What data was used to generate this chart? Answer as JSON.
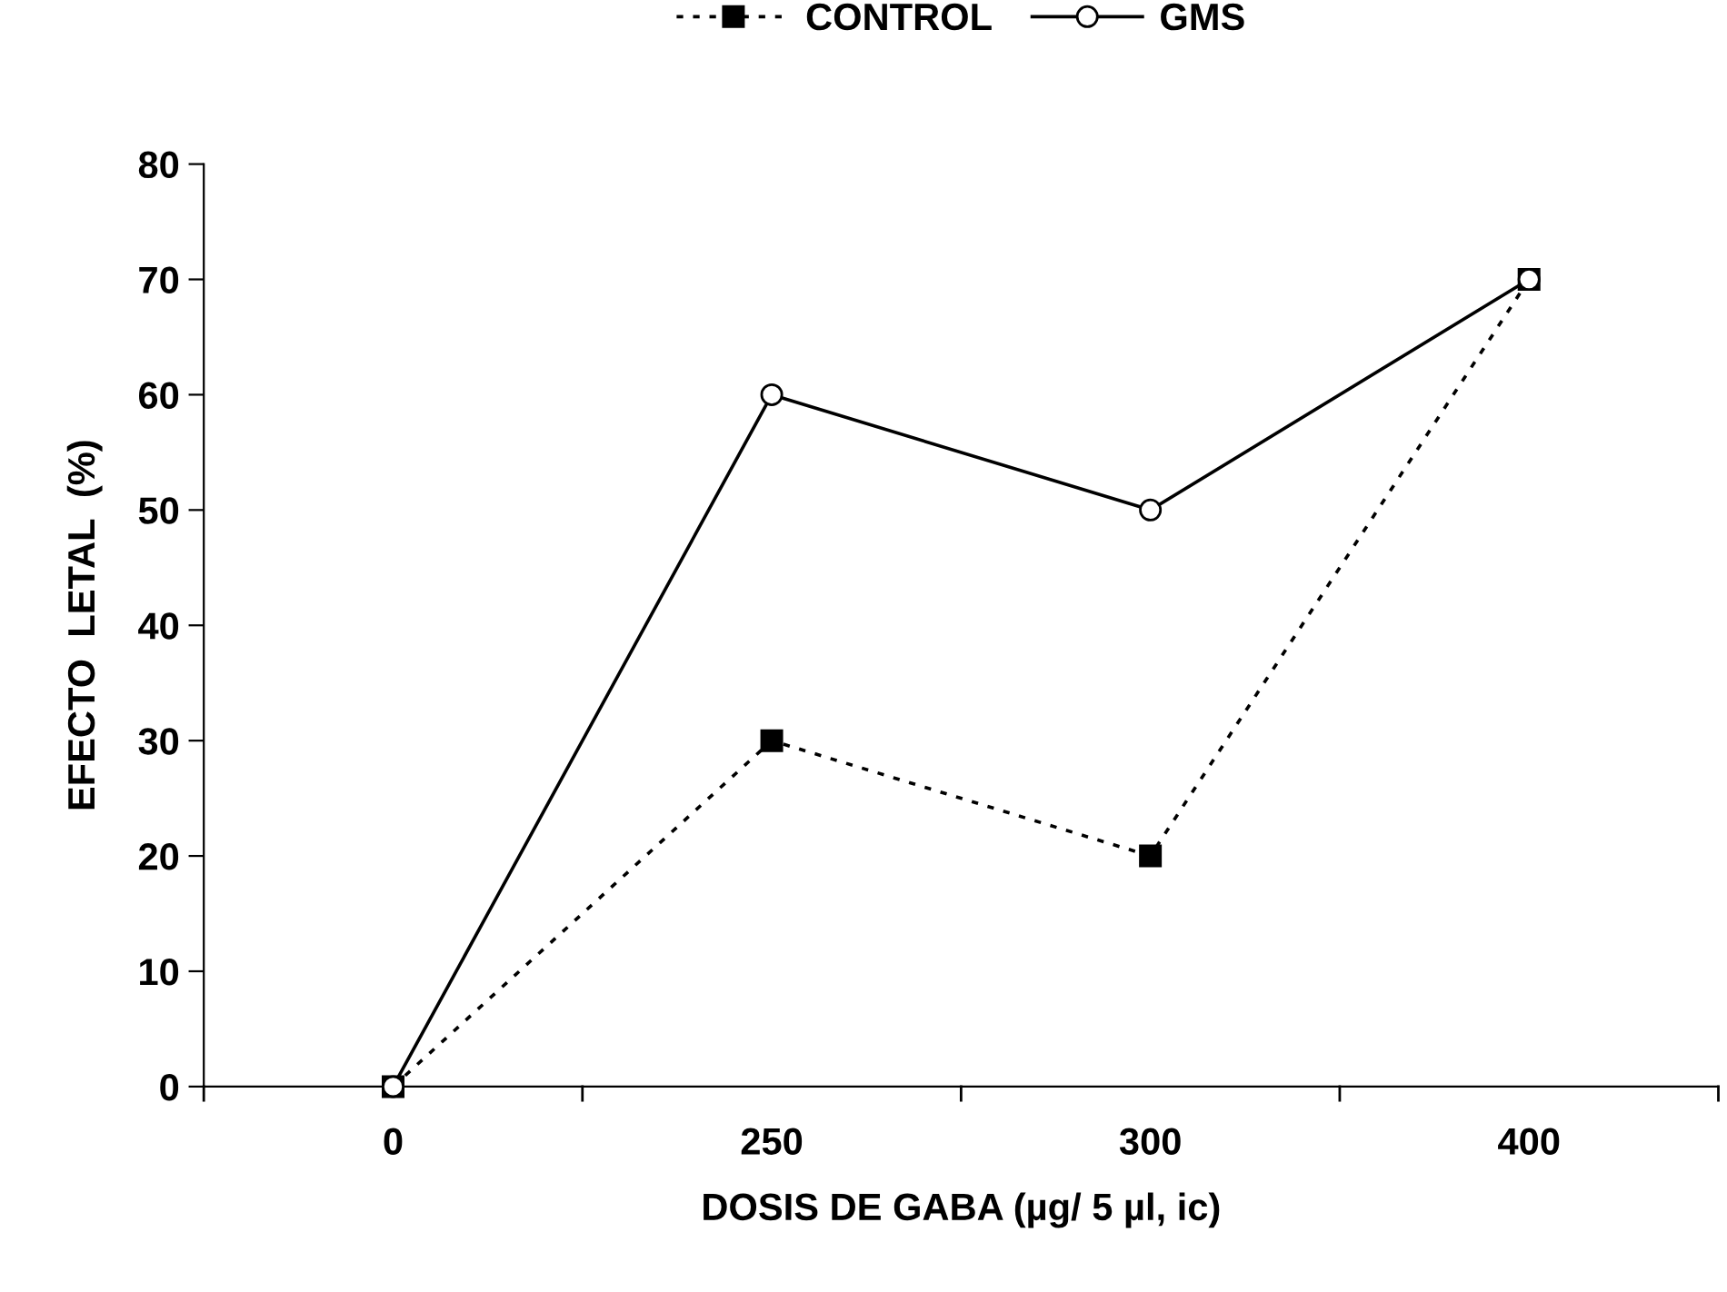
{
  "chart_data": {
    "type": "line",
    "xlabel": "DOSIS DE GABA (µg/ 5 µl, ic)",
    "ylabel": "EFECTO  LETAL  (%)",
    "categories": [
      "0",
      "250",
      "300",
      "400"
    ],
    "series": [
      {
        "name": "CONTROL",
        "color": "#000000",
        "marker": "square",
        "line_style": "dashed",
        "values": [
          0,
          30,
          20,
          70
        ]
      },
      {
        "name": "GMS",
        "color": "#000000",
        "marker": "circle",
        "line_style": "solid",
        "values": [
          0,
          60,
          50,
          70
        ]
      }
    ],
    "ylim": [
      0,
      80
    ],
    "yticks": [
      0,
      10,
      20,
      30,
      40,
      50,
      60,
      70,
      80
    ],
    "grid": false,
    "legend": "top"
  }
}
